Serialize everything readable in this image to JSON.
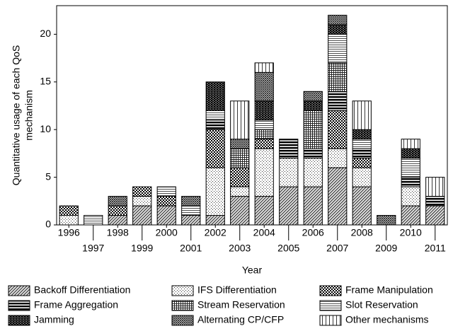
{
  "chart_data": {
    "type": "stacked_bar",
    "ylabel": [
      "Quantitative usage of each QoS",
      "mechanism"
    ],
    "xlabel": "Year",
    "categories": [
      "1996",
      "1997",
      "1998",
      "1999",
      "2000",
      "2001",
      "2002",
      "2003",
      "2004",
      "2005",
      "2006",
      "2007",
      "2008",
      "2009",
      "2010",
      "2011"
    ],
    "ylim": [
      0,
      23
    ],
    "yticks": [
      0,
      5,
      10,
      15,
      20
    ],
    "grid": false,
    "series": [
      {
        "name": "Backoff Differentiation",
        "pattern": "fine-diagonal",
        "values": [
          0,
          0,
          1,
          2,
          2,
          1,
          1,
          3,
          3,
          4,
          4,
          6,
          4,
          0,
          2,
          2
        ]
      },
      {
        "name": "IFS Differentiation",
        "pattern": "sparse-dots",
        "values": [
          1,
          0,
          0,
          1,
          0,
          0,
          5,
          1,
          5,
          3,
          3,
          2,
          2,
          0,
          2,
          0
        ]
      },
      {
        "name": "Frame Manipulation",
        "pattern": "checker",
        "values": [
          1,
          0,
          1,
          1,
          1,
          0,
          4,
          2,
          1,
          0,
          0,
          4,
          1,
          0,
          0,
          0
        ]
      },
      {
        "name": "Frame Aggregation",
        "pattern": "thick-horizontal",
        "values": [
          0,
          0,
          0,
          0,
          0,
          0,
          1,
          0,
          0,
          2,
          1,
          2,
          1,
          0,
          1,
          1
        ]
      },
      {
        "name": "Stream Reservation",
        "pattern": "grid",
        "values": [
          0,
          0,
          0,
          0,
          0,
          0,
          0,
          2,
          1,
          0,
          4,
          3,
          0,
          0,
          0,
          0
        ]
      },
      {
        "name": "Slot Reservation",
        "pattern": "thin-horizontal",
        "values": [
          0,
          1,
          0,
          0,
          1,
          1,
          1,
          0,
          1,
          0,
          0,
          3,
          1,
          0,
          2,
          0
        ]
      },
      {
        "name": "Jamming",
        "pattern": "brick",
        "values": [
          0,
          0,
          0,
          0,
          0,
          0,
          3,
          0,
          2,
          0,
          1,
          1,
          1,
          0,
          1,
          0
        ]
      },
      {
        "name": "Alternating CP/CFP",
        "pattern": "crosshatch",
        "values": [
          0,
          0,
          1,
          0,
          0,
          1,
          0,
          1,
          3,
          0,
          1,
          1,
          0,
          1,
          0,
          0
        ]
      },
      {
        "name": "Other mechanisms",
        "pattern": "vertical",
        "values": [
          0,
          0,
          0,
          0,
          0,
          0,
          0,
          4,
          1,
          0,
          0,
          0,
          3,
          0,
          1,
          2
        ]
      }
    ]
  }
}
